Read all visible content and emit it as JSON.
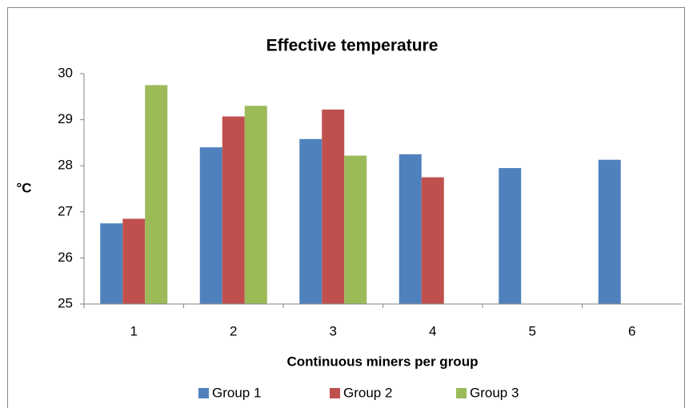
{
  "chart_data": {
    "type": "bar",
    "title": "Effective temperature",
    "x_label": "Continuous miners per group",
    "y_label": "°C",
    "categories": [
      "1",
      "2",
      "3",
      "4",
      "5",
      "6"
    ],
    "series": [
      {
        "name": "Group 1",
        "color": "#4f81bd",
        "values": [
          26.75,
          28.4,
          28.58,
          28.25,
          27.95,
          28.13
        ]
      },
      {
        "name": "Group 2",
        "color": "#c0504d",
        "values": [
          26.85,
          29.07,
          29.22,
          27.75,
          null,
          null
        ]
      },
      {
        "name": "Group 3",
        "color": "#9bbb59",
        "values": [
          29.75,
          29.3,
          28.22,
          null,
          null,
          null
        ]
      }
    ],
    "ylim": [
      25,
      30
    ],
    "yticks": [
      25,
      26,
      27,
      28,
      29,
      30
    ],
    "grid": false,
    "legend": "bottom"
  }
}
